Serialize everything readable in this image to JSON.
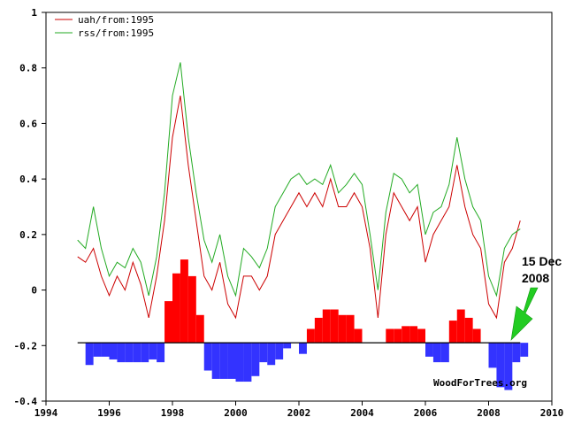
{
  "chart_data": {
    "type": "line",
    "title": "",
    "xlabel": "",
    "ylabel": "",
    "xlim": [
      1994,
      2010
    ],
    "ylim": [
      -0.4,
      1
    ],
    "x_ticks": [
      1994,
      1996,
      1998,
      2000,
      2002,
      2004,
      2006,
      2008,
      2010
    ],
    "x_tick_labels": [
      "1994",
      "1996",
      "1998",
      "2000",
      "2002",
      "2004",
      "2006",
      "2008",
      "2010"
    ],
    "y_ticks": [
      -0.4,
      -0.2,
      0,
      0.2,
      0.4,
      0.6,
      0.8,
      1
    ],
    "y_tick_labels": [
      "-0.4",
      "-0.2",
      "0",
      "0.2",
      "0.4",
      "0.6",
      "0.8",
      "1"
    ],
    "grid": false,
    "legend_position": "top-left",
    "baseline": -0.19,
    "series": [
      {
        "name": "uah/from:1995",
        "color": "#cc0000",
        "x": [
          1995.0,
          1995.25,
          1995.5,
          1995.75,
          1996.0,
          1996.25,
          1996.5,
          1996.75,
          1997.0,
          1997.25,
          1997.5,
          1997.75,
          1998.0,
          1998.25,
          1998.5,
          1998.75,
          1999.0,
          1999.25,
          1999.5,
          1999.75,
          2000.0,
          2000.25,
          2000.5,
          2000.75,
          2001.0,
          2001.25,
          2001.5,
          2001.75,
          2002.0,
          2002.25,
          2002.5,
          2002.75,
          2003.0,
          2003.25,
          2003.5,
          2003.75,
          2004.0,
          2004.25,
          2004.5,
          2004.75,
          2005.0,
          2005.25,
          2005.5,
          2005.75,
          2006.0,
          2006.25,
          2006.5,
          2006.75,
          2007.0,
          2007.25,
          2007.5,
          2007.75,
          2008.0,
          2008.25,
          2008.5,
          2008.75,
          2009.0
        ],
        "values": [
          0.12,
          0.1,
          0.15,
          0.05,
          -0.02,
          0.05,
          0.0,
          0.1,
          0.02,
          -0.1,
          0.05,
          0.25,
          0.55,
          0.7,
          0.45,
          0.25,
          0.05,
          0.0,
          0.1,
          -0.05,
          -0.1,
          0.05,
          0.05,
          0.0,
          0.05,
          0.2,
          0.25,
          0.3,
          0.35,
          0.3,
          0.35,
          0.3,
          0.4,
          0.3,
          0.3,
          0.35,
          0.3,
          0.15,
          -0.1,
          0.2,
          0.35,
          0.3,
          0.25,
          0.3,
          0.1,
          0.2,
          0.25,
          0.3,
          0.45,
          0.3,
          0.2,
          0.15,
          -0.05,
          -0.1,
          0.1,
          0.15,
          0.25
        ]
      },
      {
        "name": "rss/from:1995",
        "color": "#22aa22",
        "x": [
          1995.0,
          1995.25,
          1995.5,
          1995.75,
          1996.0,
          1996.25,
          1996.5,
          1996.75,
          1997.0,
          1997.25,
          1997.5,
          1997.75,
          1998.0,
          1998.25,
          1998.5,
          1998.75,
          1999.0,
          1999.25,
          1999.5,
          1999.75,
          2000.0,
          2000.25,
          2000.5,
          2000.75,
          2001.0,
          2001.25,
          2001.5,
          2001.75,
          2002.0,
          2002.25,
          2002.5,
          2002.75,
          2003.0,
          2003.25,
          2003.5,
          2003.75,
          2004.0,
          2004.25,
          2004.5,
          2004.75,
          2005.0,
          2005.25,
          2005.5,
          2005.75,
          2006.0,
          2006.25,
          2006.5,
          2006.75,
          2007.0,
          2007.25,
          2007.5,
          2007.75,
          2008.0,
          2008.25,
          2008.5,
          2008.75,
          2009.0
        ],
        "values": [
          0.18,
          0.15,
          0.3,
          0.15,
          0.05,
          0.1,
          0.08,
          0.15,
          0.1,
          -0.02,
          0.12,
          0.35,
          0.7,
          0.82,
          0.55,
          0.35,
          0.18,
          0.1,
          0.2,
          0.05,
          -0.02,
          0.15,
          0.12,
          0.08,
          0.15,
          0.3,
          0.35,
          0.4,
          0.42,
          0.38,
          0.4,
          0.38,
          0.45,
          0.35,
          0.38,
          0.42,
          0.38,
          0.2,
          0.0,
          0.28,
          0.42,
          0.4,
          0.35,
          0.38,
          0.2,
          0.28,
          0.3,
          0.38,
          0.55,
          0.4,
          0.3,
          0.25,
          0.05,
          -0.02,
          0.15,
          0.2,
          0.22
        ]
      }
    ],
    "bars": {
      "x": [
        1995.0,
        1995.25,
        1995.5,
        1995.75,
        1996.0,
        1996.25,
        1996.5,
        1996.75,
        1997.0,
        1997.25,
        1997.5,
        1997.75,
        1998.0,
        1998.25,
        1998.5,
        1998.75,
        1999.0,
        1999.25,
        1999.5,
        1999.75,
        2000.0,
        2000.25,
        2000.5,
        2000.75,
        2001.0,
        2001.25,
        2001.5,
        2001.75,
        2002.0,
        2002.25,
        2002.5,
        2002.75,
        2003.0,
        2003.25,
        2003.5,
        2003.75,
        2004.0,
        2004.25,
        2004.5,
        2004.75,
        2005.0,
        2005.25,
        2005.5,
        2005.75,
        2006.0,
        2006.25,
        2006.5,
        2006.75,
        2007.0,
        2007.25,
        2007.5,
        2007.75,
        2008.0,
        2008.25,
        2008.5,
        2008.75,
        2009.0
      ],
      "values": [
        0.0,
        -0.08,
        -0.05,
        -0.05,
        -0.06,
        -0.07,
        -0.07,
        -0.07,
        -0.07,
        -0.06,
        -0.07,
        0.15,
        0.25,
        0.3,
        0.24,
        0.1,
        -0.1,
        -0.13,
        -0.13,
        -0.13,
        -0.14,
        -0.14,
        -0.12,
        -0.07,
        -0.08,
        -0.06,
        -0.02,
        0.0,
        -0.04,
        0.05,
        0.09,
        0.12,
        0.12,
        0.1,
        0.1,
        0.05,
        0.0,
        0.0,
        0.0,
        0.05,
        0.05,
        0.06,
        0.06,
        0.05,
        -0.05,
        -0.07,
        -0.07,
        0.08,
        0.12,
        0.09,
        0.05,
        0.0,
        -0.09,
        -0.16,
        -0.17,
        -0.07,
        -0.05
      ],
      "positive_color": "#ff0000",
      "negative_color": "#3333ff"
    },
    "annotations": [
      {
        "text_line1": "15 Dec",
        "text_line2": "2008",
        "target_x": 2008.71,
        "target_y": -0.19,
        "arrow_color": "#22cc22"
      }
    ],
    "credit": "WoodForTrees.org"
  }
}
